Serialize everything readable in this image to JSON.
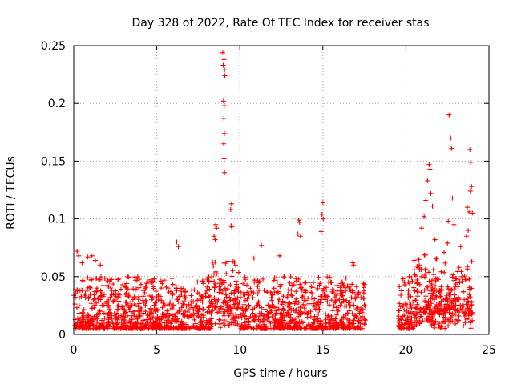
{
  "chart_data": {
    "type": "scatter",
    "title": "Day 328 of 2022, Rate Of TEC Index for receiver stas",
    "xlabel": "GPS time / hours",
    "ylabel": "ROTI / TECUs",
    "xlim": [
      0,
      25
    ],
    "ylim": [
      0,
      0.25
    ],
    "xticks": [
      0,
      5,
      10,
      15,
      20,
      25
    ],
    "xtick_labels": [
      "0",
      "5",
      "10",
      "15",
      "20",
      "25"
    ],
    "yticks": [
      0,
      0.05,
      0.1,
      0.15,
      0.2,
      0.25
    ],
    "ytick_labels": [
      "0",
      "0.05",
      "0.1",
      "0.15",
      "0.2",
      "0.25"
    ],
    "grid": true,
    "marker": "+",
    "color": "#ff0000",
    "data_gap_hours": [
      17.55,
      19.55
    ],
    "series": [
      {
        "name": "ROTI",
        "points": [
          [
            8.97,
            0.244
          ],
          [
            9.05,
            0.238
          ],
          [
            9.0,
            0.233
          ],
          [
            9.08,
            0.229
          ],
          [
            9.1,
            0.224
          ],
          [
            9.02,
            0.202
          ],
          [
            9.06,
            0.198
          ],
          [
            9.04,
            0.187
          ],
          [
            9.07,
            0.174
          ],
          [
            9.03,
            0.165
          ],
          [
            9.05,
            0.152
          ],
          [
            9.08,
            0.14
          ],
          [
            9.5,
            0.113
          ],
          [
            9.45,
            0.108
          ],
          [
            9.48,
            0.094
          ],
          [
            9.52,
            0.093
          ],
          [
            8.55,
            0.095
          ],
          [
            8.6,
            0.092
          ],
          [
            8.45,
            0.085
          ],
          [
            8.52,
            0.082
          ],
          [
            15.0,
            0.114
          ],
          [
            14.95,
            0.104
          ],
          [
            15.02,
            0.1
          ],
          [
            14.9,
            0.089
          ],
          [
            13.55,
            0.099
          ],
          [
            13.6,
            0.097
          ],
          [
            13.5,
            0.087
          ],
          [
            13.65,
            0.085
          ],
          [
            11.3,
            0.077
          ],
          [
            12.4,
            0.068
          ],
          [
            10.85,
            0.066
          ],
          [
            6.2,
            0.08
          ],
          [
            6.3,
            0.076
          ],
          [
            16.8,
            0.062
          ],
          [
            16.85,
            0.06
          ],
          [
            0.2,
            0.072
          ],
          [
            0.3,
            0.068
          ],
          [
            0.5,
            0.062
          ],
          [
            0.85,
            0.067
          ],
          [
            1.1,
            0.068
          ],
          [
            1.3,
            0.064
          ],
          [
            1.6,
            0.06
          ],
          [
            22.6,
            0.19
          ],
          [
            22.7,
            0.17
          ],
          [
            22.75,
            0.161
          ],
          [
            23.85,
            0.16
          ],
          [
            23.9,
            0.149
          ],
          [
            21.4,
            0.147
          ],
          [
            21.45,
            0.143
          ],
          [
            21.3,
            0.133
          ],
          [
            23.95,
            0.128
          ],
          [
            23.88,
            0.124
          ],
          [
            21.5,
            0.122
          ],
          [
            22.8,
            0.118
          ],
          [
            21.2,
            0.116
          ],
          [
            21.6,
            0.111
          ],
          [
            23.7,
            0.11
          ],
          [
            23.8,
            0.106
          ],
          [
            24.0,
            0.105
          ],
          [
            21.1,
            0.102
          ],
          [
            22.55,
            0.098
          ],
          [
            22.9,
            0.095
          ],
          [
            20.95,
            0.092
          ],
          [
            23.75,
            0.09
          ],
          [
            23.65,
            0.085
          ],
          [
            21.75,
            0.082
          ],
          [
            22.5,
            0.079
          ],
          [
            23.3,
            0.076
          ],
          [
            22.3,
            0.071
          ],
          [
            20.5,
            0.064
          ],
          [
            20.8,
            0.06
          ],
          [
            23.2,
            0.058
          ],
          [
            19.9,
            0.045
          ],
          [
            20.2,
            0.05
          ]
        ]
      }
    ]
  }
}
